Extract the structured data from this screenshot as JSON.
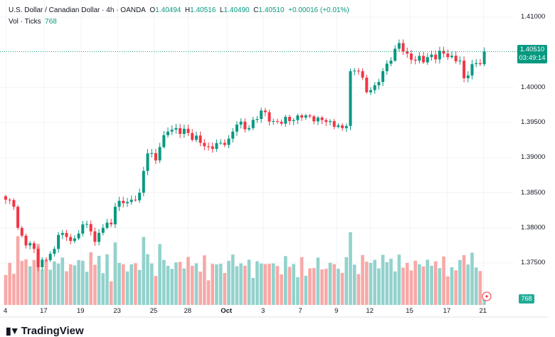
{
  "legend": {
    "symbol": "U.S. Dollar / Canadian Dollar · 4h · OANDA",
    "o_label": "O",
    "o": "1.40494",
    "h_label": "H",
    "h": "1.40516",
    "l_label": "L",
    "l": "1.40490",
    "c_label": "C",
    "c": "1.40510",
    "change": "+0.00016 (+0.01%)",
    "vol_label": "Vol · Ticks",
    "vol": "768"
  },
  "price_tag": {
    "price": "1.40510",
    "countdown": "03:49:14"
  },
  "volume_tag": "768",
  "brand": "TradingView",
  "colors": {
    "up": "#089981",
    "down": "#f23645",
    "vol_up": "#92d2cc",
    "vol_down": "#f7a9a7"
  },
  "chart_data": {
    "type": "candlestick",
    "title": "U.S. Dollar / Canadian Dollar · 4h · OANDA",
    "ylim": [
      1.3705,
      1.4115
    ],
    "y_ticks": [
      "1.41000",
      "1.40000",
      "1.39500",
      "1.39000",
      "1.38500",
      "1.38000",
      "1.37500"
    ],
    "y_tick_values": [
      1.41,
      1.4,
      1.395,
      1.39,
      1.385,
      1.38,
      1.375
    ],
    "x_ticks": [
      "4",
      "17",
      "19",
      "23",
      "25",
      "28",
      "Oct",
      "3",
      "7",
      "9",
      "12",
      "15",
      "17",
      "21"
    ],
    "x_tick_index": [
      0,
      9.5,
      18.6,
      27.6,
      36.6,
      45,
      54.6,
      63.5,
      72.7,
      81.6,
      89.9,
      99.7,
      108.9,
      117.8
    ],
    "candle_count": 119,
    "close_waypoints": [
      [
        0,
        1.384
      ],
      [
        2,
        1.383
      ],
      [
        3,
        1.38
      ],
      [
        5,
        1.3775
      ],
      [
        7,
        1.377
      ],
      [
        8,
        1.3744
      ],
      [
        10,
        1.3754
      ],
      [
        12,
        1.377
      ],
      [
        13,
        1.379
      ],
      [
        15,
        1.3787
      ],
      [
        17,
        1.3785
      ],
      [
        19,
        1.3805
      ],
      [
        21,
        1.3795
      ],
      [
        22,
        1.378
      ],
      [
        24,
        1.38
      ],
      [
        26,
        1.3805
      ],
      [
        27,
        1.383
      ],
      [
        29,
        1.3835
      ],
      [
        31,
        1.384
      ],
      [
        33,
        1.385
      ],
      [
        34,
        1.3881
      ],
      [
        35,
        1.3906
      ],
      [
        37,
        1.3896
      ],
      [
        38,
        1.3915
      ],
      [
        40,
        1.3937
      ],
      [
        42,
        1.3942
      ],
      [
        45,
        1.3935
      ],
      [
        48,
        1.3921
      ],
      [
        50,
        1.3916
      ],
      [
        53,
        1.3921
      ],
      [
        55,
        1.3927
      ],
      [
        57,
        1.3947
      ],
      [
        60,
        1.3942
      ],
      [
        62,
        1.3955
      ],
      [
        63,
        1.3967
      ],
      [
        66,
        1.3952
      ],
      [
        70,
        1.3952
      ],
      [
        73,
        1.3957
      ],
      [
        77,
        1.3957
      ],
      [
        80,
        1.3952
      ],
      [
        83,
        1.3942
      ],
      [
        84,
        1.3945
      ],
      [
        85,
        1.4023
      ],
      [
        87,
        1.4023
      ],
      [
        89,
        1.3993
      ],
      [
        91,
        1.4003
      ],
      [
        93,
        1.4023
      ],
      [
        95,
        1.4038
      ],
      [
        96,
        1.4055
      ],
      [
        97,
        1.4063
      ],
      [
        99,
        1.4048
      ],
      [
        101,
        1.4038
      ],
      [
        104,
        1.4043
      ],
      [
        108,
        1.4048
      ],
      [
        110,
        1.4045
      ],
      [
        112,
        1.4038
      ],
      [
        113,
        1.4013
      ],
      [
        115,
        1.4033
      ],
      [
        117,
        1.4033
      ],
      [
        118,
        1.4051
      ]
    ],
    "last_volume": 768
  }
}
